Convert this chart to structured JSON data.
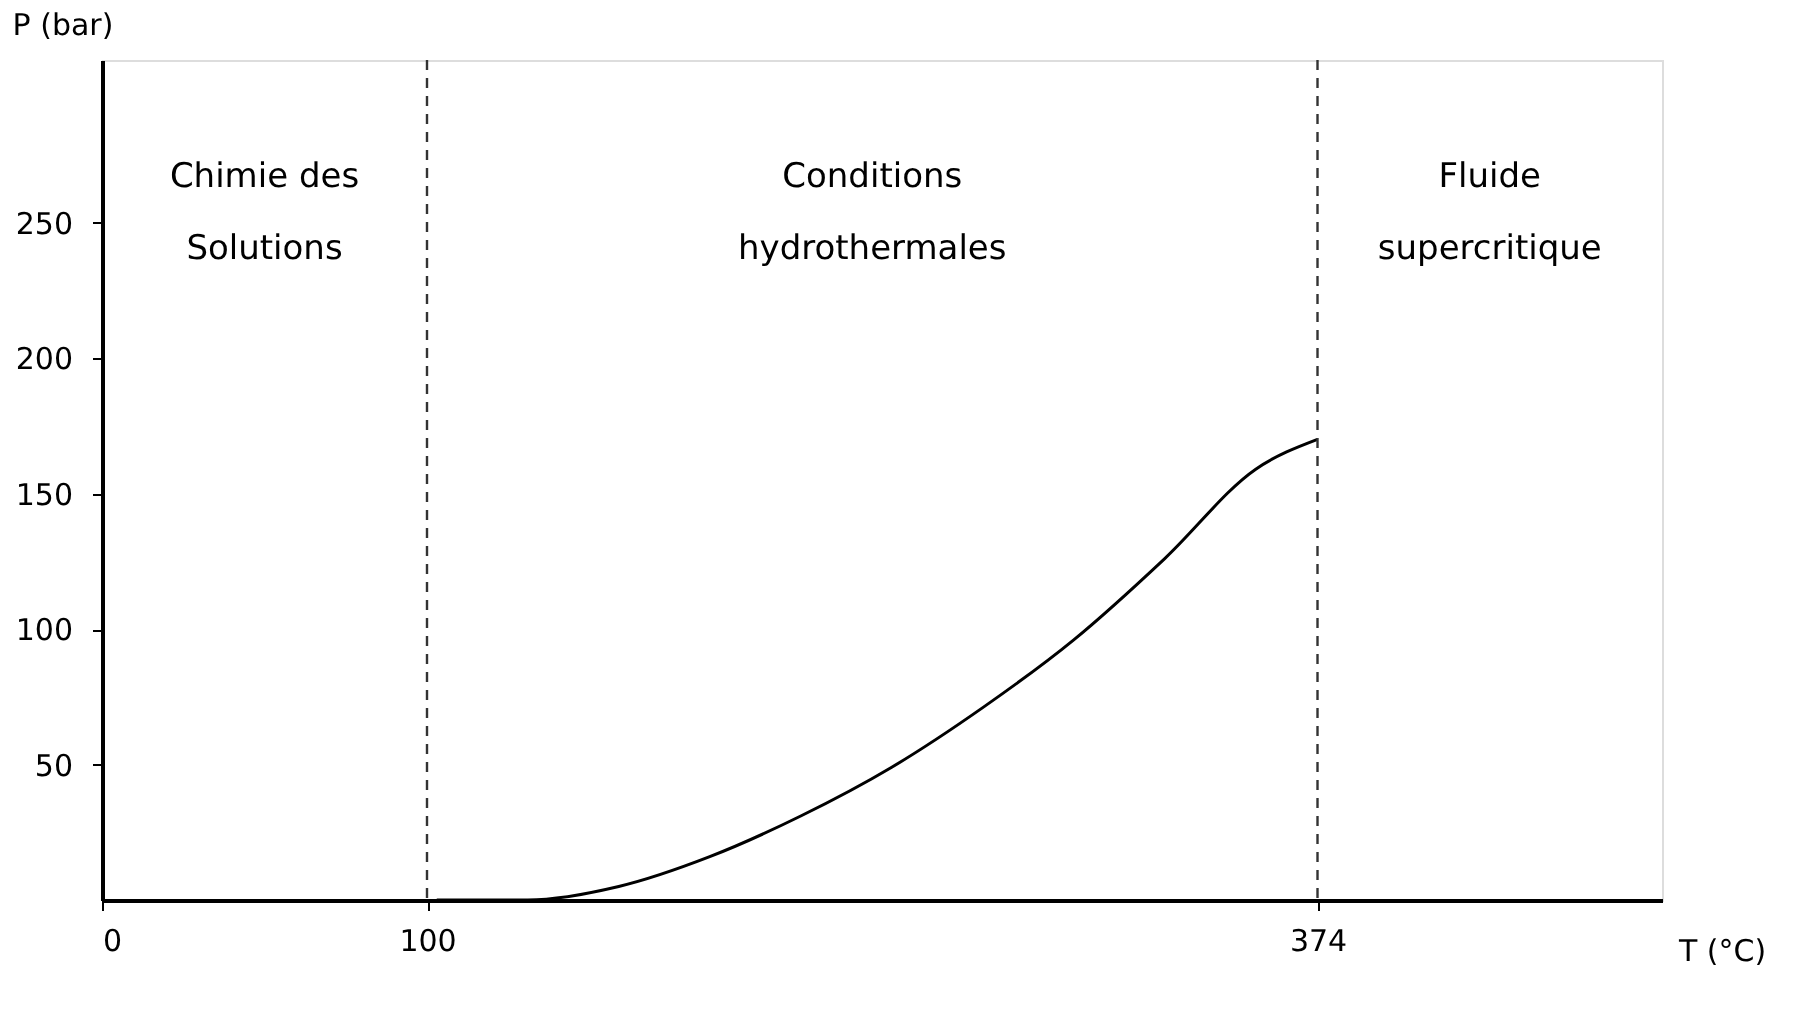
{
  "chart_data": {
    "type": "line",
    "xlabel": "T (°C)",
    "ylabel": "P (bar)",
    "xlim": [
      0,
      480
    ],
    "ylim": [
      0,
      310
    ],
    "xticks": [
      0,
      100,
      374
    ],
    "yticks": [
      50,
      100,
      150,
      200,
      250
    ],
    "grid": false,
    "marker": "none",
    "series": [
      {
        "color": "#000000",
        "line_style": "solid",
        "x": [
          103,
          131,
          159,
          187,
          215,
          243,
          271,
          299,
          327,
          355,
          374
        ],
        "values": [
          0,
          0,
          5,
          16,
          31,
          49,
          71,
          96,
          126,
          159,
          170
        ]
      }
    ],
    "ref_lines": [
      {
        "axis": "x",
        "value": 100,
        "color": "#333333",
        "line_style": "dashed"
      },
      {
        "axis": "x",
        "value": 374,
        "color": "#333333",
        "line_style": "dashed"
      }
    ],
    "annotations": [
      "Chimie des\nSolutions",
      "Conditions\nhydrothermales",
      "Fluide\nsupercritique"
    ]
  }
}
